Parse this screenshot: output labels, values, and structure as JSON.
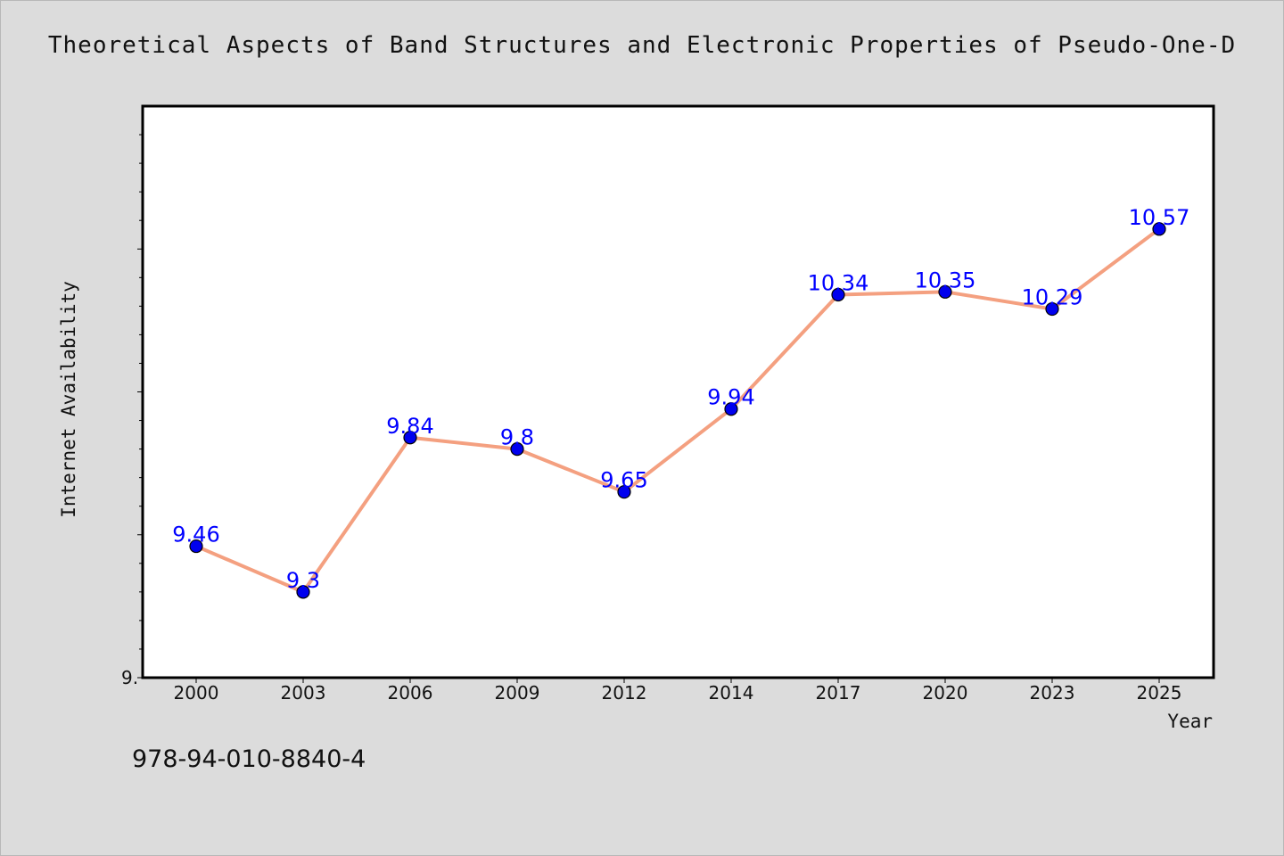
{
  "title": "Theoretical Aspects of Band Structures and Electronic Properties of Pseudo-One-D",
  "footnote": "978-94-010-8840-4",
  "colors": {
    "background": "#dcdcdc",
    "plot_background": "#ffffff",
    "line": "#f4a080",
    "marker": "#0000ee",
    "data_label": "#0000ff"
  },
  "chart_data": {
    "type": "line",
    "xlabel": "Year",
    "ylabel": "Internet Availability",
    "categories": [
      "2000",
      "2003",
      "2006",
      "2009",
      "2012",
      "2014",
      "2017",
      "2020",
      "2023",
      "2025"
    ],
    "series": [
      {
        "values": [
          9.46,
          9.3,
          9.84,
          9.8,
          9.65,
          9.94,
          10.34,
          10.35,
          10.29,
          10.57
        ]
      }
    ],
    "data_labels": [
      "9.46",
      "9.3",
      "9.84",
      "9.8",
      "9.65",
      "9.94",
      "10.34",
      "10.35",
      "10.29",
      "10.57"
    ],
    "y_tick_labels": [
      "9."
    ],
    "ylim": [
      9.0,
      11.0
    ],
    "grid": false,
    "legend": "none"
  }
}
